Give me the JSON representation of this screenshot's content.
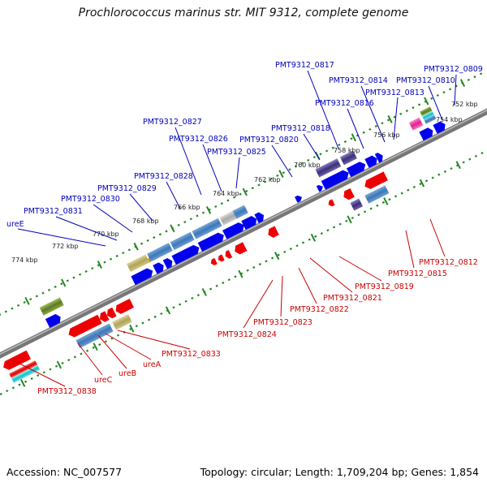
{
  "title": "Prochlorococcus marinus str. MIT 9312, complete genome",
  "footer": {
    "accession": "Accession: NC_007577",
    "summary": "Topology: circular; Length: 1,709,204 bp; Genes: 1,854"
  },
  "kbp_labels": [
    "752 kbp",
    "754 kbp",
    "756 kbp",
    "758 kbp",
    "760 kbp",
    "762 kbp",
    "764 kbp",
    "766 kbp",
    "768 kbp",
    "770 kbp",
    "772 kbp",
    "774 kbp"
  ],
  "top_labels": [
    "PMT9312_0809",
    "PMT9312_0810",
    "PMT9312_0813",
    "PMT9312_0814",
    "PMT9312_0816",
    "PMT9312_0817",
    "PMT9312_0818",
    "PMT9312_0820",
    "PMT9312_0825",
    "PMT9312_0826",
    "PMT9312_0827",
    "PMT9312_0828",
    "PMT9312_0829",
    "PMT9312_0830",
    "PMT9312_0831",
    "ureE"
  ],
  "bottom_labels": [
    "PMT9312_0812",
    "PMT9312_0815",
    "PMT9312_0819",
    "PMT9312_0821",
    "PMT9312_0822",
    "PMT9312_0823",
    "PMT9312_0824",
    "PMT9312_0833",
    "ureA",
    "ureB",
    "ureC",
    "PMT9312_0838"
  ],
  "colors": {
    "forward_label": "#0000bb",
    "reverse_label": "#cc0000",
    "forward_arrow": "#0000ee",
    "reverse_arrow": "#ee0000",
    "tick": "#228822",
    "backbone": "#888888"
  }
}
